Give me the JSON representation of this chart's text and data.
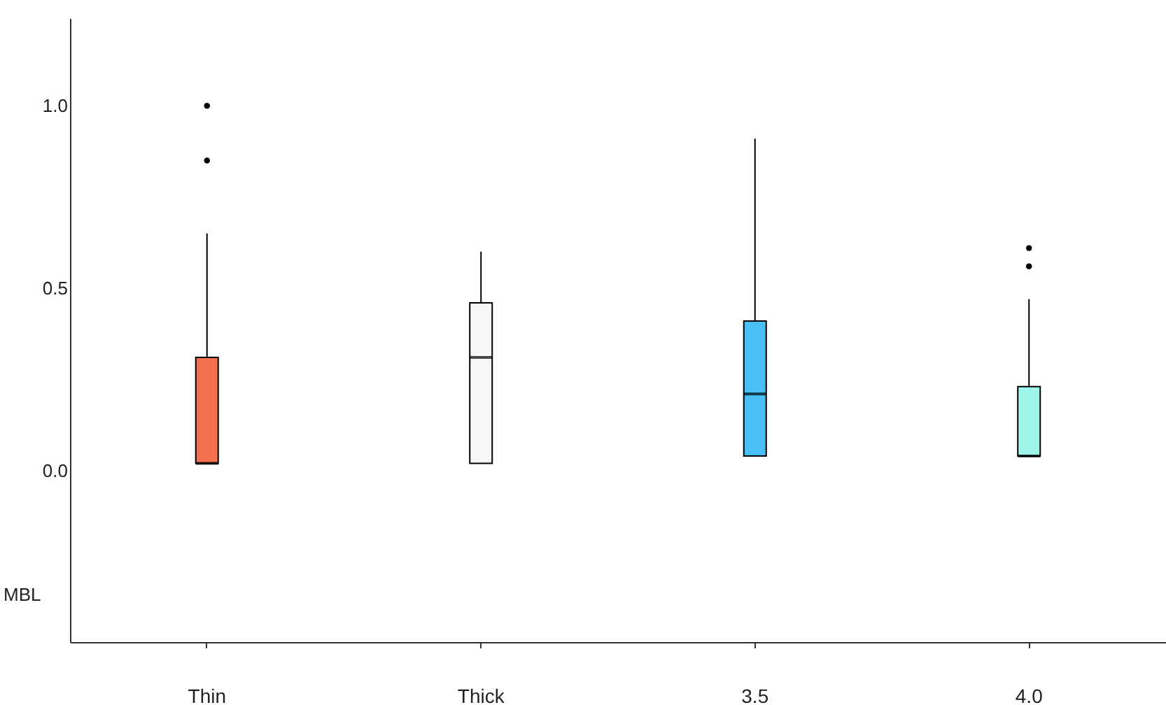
{
  "chart_data": {
    "type": "box",
    "ylabel": "MBL",
    "categories": [
      "Thin",
      "Thick",
      "3.5",
      "4.0"
    ],
    "colors": [
      "#f4704f",
      "#f7f7f7",
      "#48bff5",
      "#9cf5e8"
    ],
    "boxes": [
      {
        "low": 0.02,
        "q1": 0.02,
        "median": 0.02,
        "q3": 0.31,
        "high": 0.65,
        "outliers": [
          1.0,
          0.85
        ]
      },
      {
        "low": 0.02,
        "q1": 0.02,
        "median": 0.31,
        "q3": 0.46,
        "high": 0.6
      },
      {
        "low": 0.04,
        "q1": 0.04,
        "median": 0.21,
        "q3": 0.41,
        "high": 0.91
      },
      {
        "low": 0.04,
        "q1": 0.04,
        "median": 0.04,
        "q3": 0.23,
        "high": 0.47,
        "outliers": [
          0.61,
          0.56
        ]
      }
    ],
    "ylim": [
      -0.47,
      1.24
    ],
    "yticks": [
      {
        "value": 0,
        "label": "0.0"
      },
      {
        "value": 0.5,
        "label": "0.5"
      },
      {
        "value": 1,
        "label": "1.0"
      }
    ],
    "tick_labels": true
  }
}
